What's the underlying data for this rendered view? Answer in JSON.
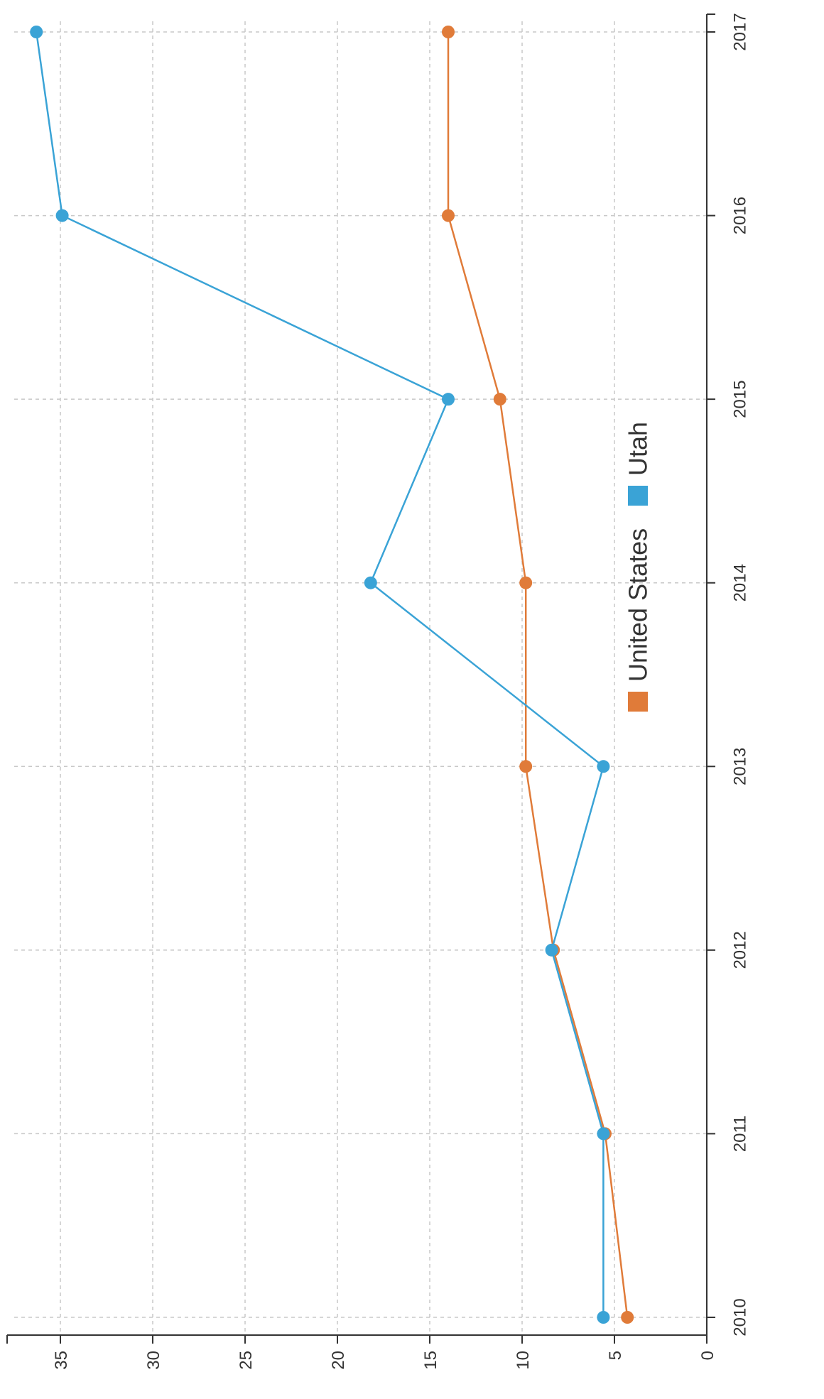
{
  "chart_data": {
    "type": "line",
    "title": "",
    "xlabel": "",
    "ylabel": "",
    "x": [
      2010,
      2011,
      2012,
      2013,
      2014,
      2015,
      2016,
      2017
    ],
    "ylim": [
      0,
      37
    ],
    "y_ticks": [
      0,
      5,
      10,
      15,
      20,
      25,
      30,
      35
    ],
    "grid": true,
    "rotated": "chart rendered rotated 90 degrees counter-clockwise",
    "legend_position": "right",
    "series": [
      {
        "name": "United States",
        "color": "#E07B39",
        "values": [
          4.3,
          5.5,
          8.3,
          9.8,
          9.8,
          11.2,
          14,
          14
        ]
      },
      {
        "name": "Utah",
        "color": "#3AA3D6",
        "values": [
          5.6,
          5.6,
          8.4,
          5.6,
          18.2,
          14,
          34.9,
          36.3
        ]
      }
    ]
  },
  "colors": {
    "grid": "#c8c8c8",
    "axis": "#333333"
  }
}
